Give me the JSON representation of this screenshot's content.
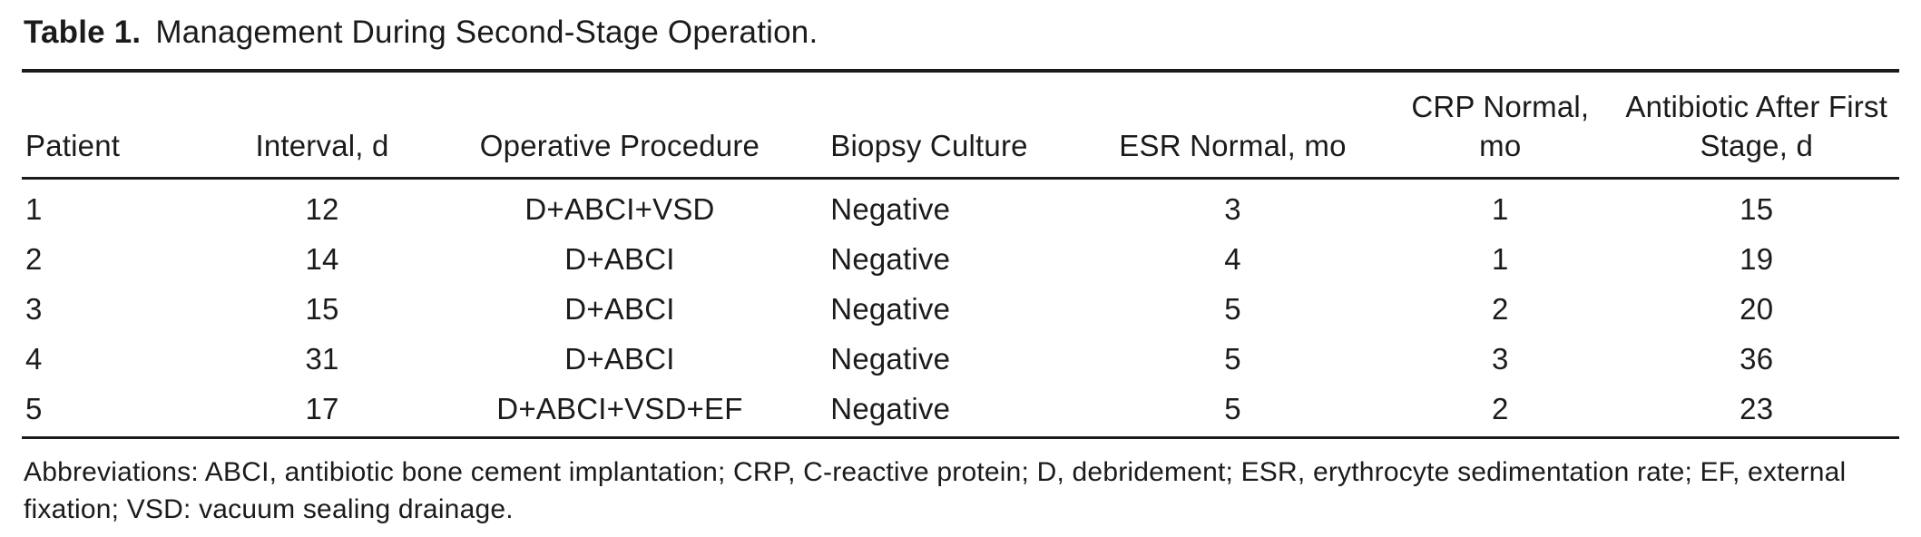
{
  "table": {
    "title_label": "Table 1.",
    "title_text": "Management During Second-Stage Operation.",
    "columns": [
      {
        "label": "Patient",
        "align": "left"
      },
      {
        "label": "Interval, d",
        "align": "center"
      },
      {
        "label": "Operative Procedure",
        "align": "center"
      },
      {
        "label": "Biopsy Culture",
        "align": "left"
      },
      {
        "label": "ESR Normal, mo",
        "align": "center"
      },
      {
        "label": "CRP Normal, mo",
        "align": "center"
      },
      {
        "label": "Antibiotic After First Stage, d",
        "align": "center"
      }
    ],
    "rows": [
      [
        "1",
        "12",
        "D+ABCI+VSD",
        "Negative",
        "3",
        "1",
        "15"
      ],
      [
        "2",
        "14",
        "D+ABCI",
        "Negative",
        "4",
        "1",
        "19"
      ],
      [
        "3",
        "15",
        "D+ABCI",
        "Negative",
        "5",
        "2",
        "20"
      ],
      [
        "4",
        "31",
        "D+ABCI",
        "Negative",
        "5",
        "3",
        "36"
      ],
      [
        "5",
        "17",
        "D+ABCI+VSD+EF",
        "Negative",
        "5",
        "2",
        "23"
      ]
    ],
    "footnote": "Abbreviations: ABCI, antibiotic bone cement implantation; CRP, C-reactive protein; D, debridement; ESR, erythrocyte sedimentation rate; EF, external fixation; VSD: vacuum sealing drainage."
  },
  "colors": {
    "text": "#1b1b1b",
    "background": "#ffffff",
    "rule": "#1b1b1b"
  }
}
